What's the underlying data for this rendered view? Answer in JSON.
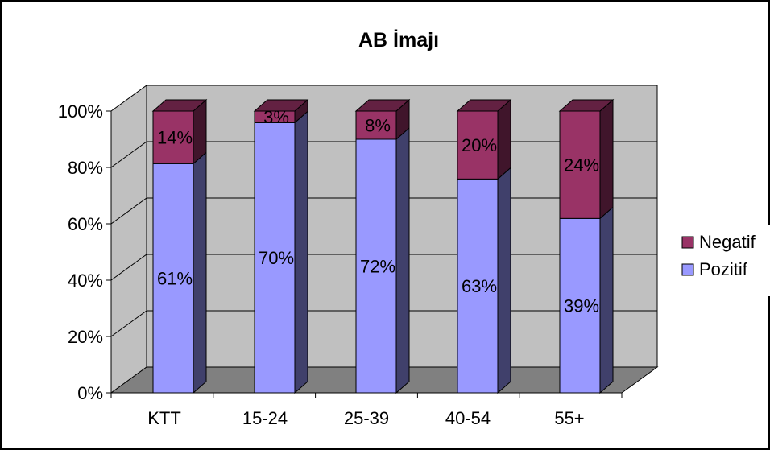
{
  "chart_data": {
    "type": "bar",
    "stacked": true,
    "percent_stacked": true,
    "three_d": true,
    "title": "AB İmajı",
    "categories": [
      "KTT",
      "15-24",
      "25-39",
      "40-54",
      "55+"
    ],
    "series": [
      {
        "name": "Pozitif",
        "color": "#9999ff",
        "values": [
          61,
          70,
          72,
          63,
          39
        ],
        "labels": [
          "61%",
          "70%",
          "72%",
          "63%",
          "39%"
        ]
      },
      {
        "name": "Negatif",
        "color": "#993366",
        "values": [
          14,
          3,
          8,
          20,
          24
        ],
        "labels": [
          "14%",
          "3%",
          "8%",
          "20%",
          "24%"
        ]
      }
    ],
    "y_ticks": [
      "0%",
      "20%",
      "40%",
      "60%",
      "80%",
      "100%"
    ],
    "ylim": [
      0,
      100
    ],
    "grid": true,
    "legend_position": "right",
    "wall_color": "#c0c0c0",
    "floor_color": "#808080"
  }
}
